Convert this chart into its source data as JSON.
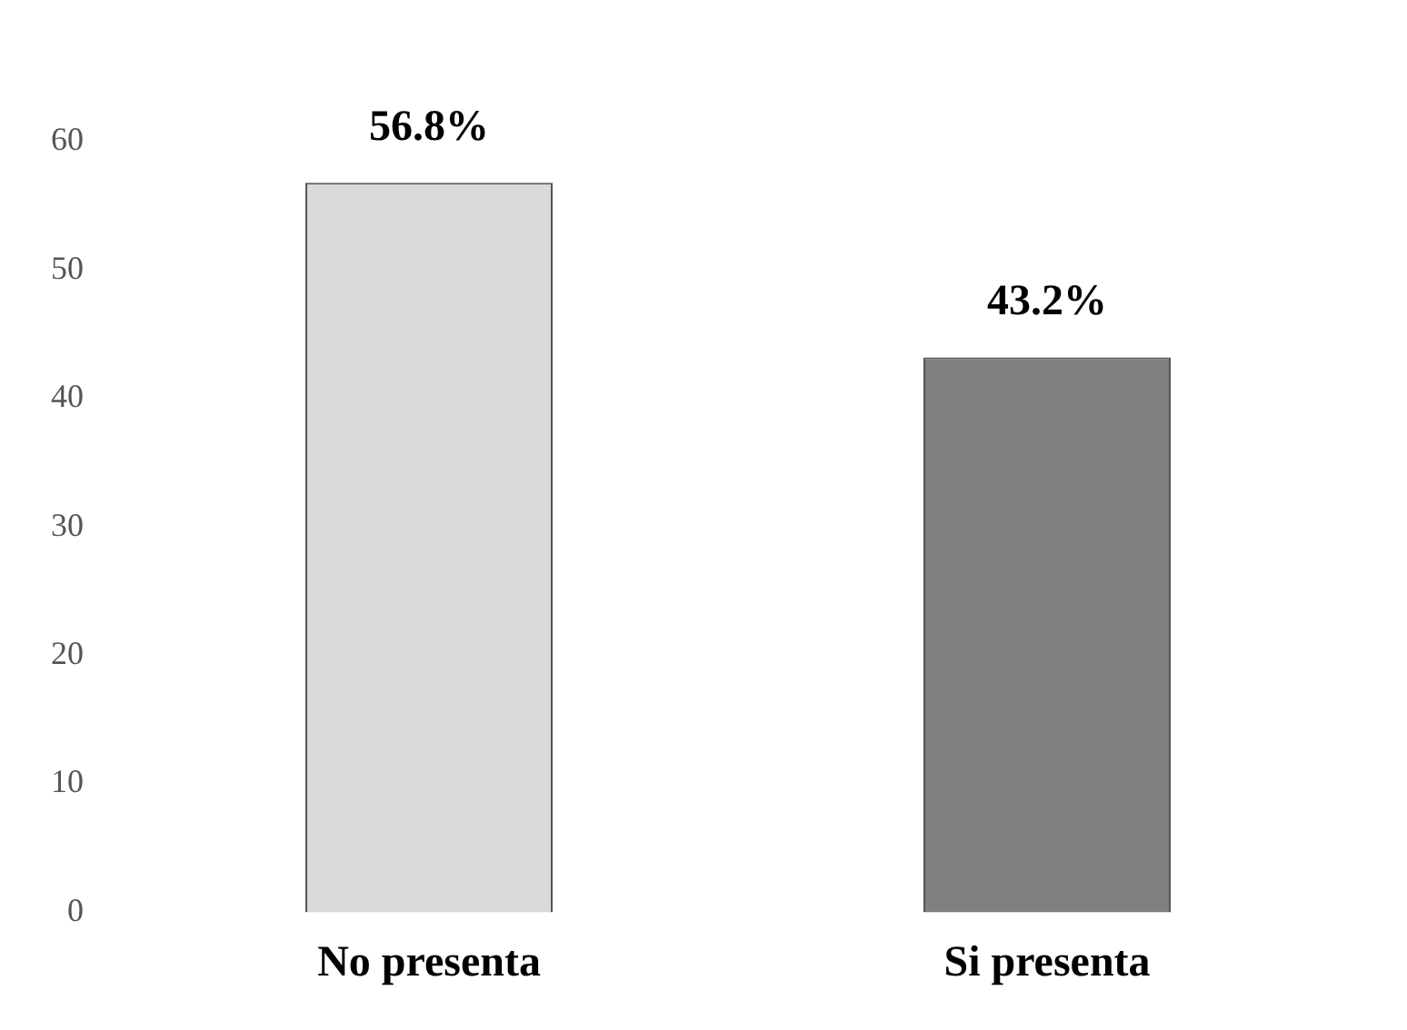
{
  "chart_data": {
    "type": "bar",
    "categories": [
      "No presenta",
      "Si presenta"
    ],
    "values": [
      56.8,
      43.2
    ],
    "colors": [
      "#d9d9d9",
      "#808080"
    ],
    "value_labels": [
      "56.8%",
      "43.2%"
    ],
    "ylim": [
      0,
      60
    ],
    "yticks": [
      0,
      10,
      20,
      30,
      40,
      50,
      60
    ],
    "grid": false,
    "legend": false
  }
}
